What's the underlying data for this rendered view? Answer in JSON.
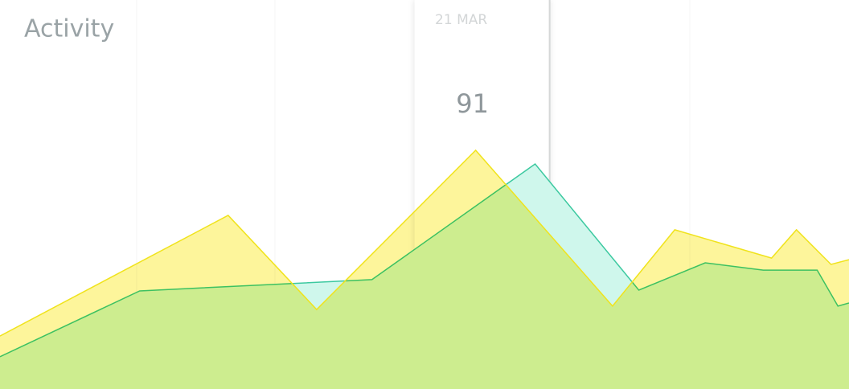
{
  "chart_data": {
    "type": "area",
    "title": "Activity",
    "annotation": "21 MAR",
    "highlight_x": 3.44,
    "xlim": [
      0,
      6.14
    ],
    "ylim": [
      0,
      148.3
    ],
    "series": [
      {
        "color": "#f0e31c",
        "fill": "#fdf59b",
        "x": [
          0,
          1.65,
          2.29,
          3.44,
          4.43,
          4.88,
          5.58,
          5.76,
          6.01,
          6.14
        ],
        "values": [
          20.2,
          66.2,
          30.3,
          91,
          31.6,
          60.7,
          49.9,
          60.7,
          47.5,
          49.3
        ]
      },
      {
        "color": "#3cc9a0",
        "fill": "#cff7ec",
        "x": [
          0,
          1.01,
          2.69,
          3.87,
          4.62,
          5.1,
          5.52,
          5.91,
          6.06,
          6.14
        ],
        "values": [
          12.3,
          37.4,
          41.7,
          85.8,
          37.7,
          48.1,
          45.3,
          45.3,
          31.6,
          32.8
        ]
      }
    ]
  }
}
